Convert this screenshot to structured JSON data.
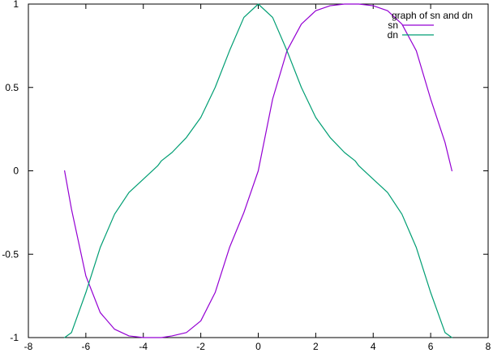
{
  "chart_data": {
    "type": "line",
    "title": "",
    "xlabel": "",
    "ylabel": "",
    "xlim": [
      -8,
      8
    ],
    "ylim": [
      -1,
      1
    ],
    "x_ticks": [
      -8,
      -6,
      -4,
      -2,
      0,
      2,
      4,
      6,
      8
    ],
    "y_ticks": [
      -1,
      -0.5,
      0,
      0.5,
      1
    ],
    "grid": false,
    "legend": {
      "placement": "top-right",
      "title": "graph of sn and dn"
    },
    "series": [
      {
        "name": "sn",
        "color": "#9400d3",
        "x": [
          -6.74,
          -6.5,
          -6.0,
          -5.5,
          -5.0,
          -4.5,
          -4.0,
          -3.5,
          -3.37,
          -3.0,
          -2.5,
          -2.0,
          -1.5,
          -1.0,
          -0.5,
          0.0,
          0.5,
          1.0,
          1.5,
          2.0,
          2.5,
          3.0,
          3.37,
          3.5,
          4.0,
          4.5,
          5.0,
          5.5,
          6.0,
          6.5,
          6.74
        ],
        "y": [
          0.0,
          -0.23,
          -0.63,
          -0.85,
          -0.95,
          -0.99,
          -1.0,
          -1.0,
          -1.0,
          -0.99,
          -0.97,
          -0.9,
          -0.73,
          -0.46,
          -0.25,
          0.0,
          0.43,
          0.72,
          0.88,
          0.96,
          0.99,
          1.0,
          1.0,
          1.0,
          0.99,
          0.96,
          0.88,
          0.72,
          0.43,
          0.17,
          0.0
        ]
      },
      {
        "name": "dn",
        "color": "#009e73",
        "x": [
          -6.74,
          -6.5,
          -6.0,
          -5.5,
          -5.0,
          -4.5,
          -4.0,
          -3.5,
          -3.37,
          -3.0,
          -2.5,
          -2.0,
          -1.5,
          -1.0,
          -0.5,
          0.0,
          0.5,
          1.0,
          1.5,
          2.0,
          2.5,
          3.0,
          3.37,
          3.5,
          4.0,
          4.5,
          5.0,
          5.5,
          6.0,
          6.5,
          6.74
        ],
        "y": [
          -1.0,
          -0.97,
          -0.73,
          -0.46,
          -0.26,
          -0.13,
          -0.05,
          0.03,
          0.06,
          0.11,
          0.2,
          0.32,
          0.5,
          0.72,
          0.92,
          1.0,
          0.92,
          0.72,
          0.5,
          0.32,
          0.2,
          0.11,
          0.06,
          0.03,
          -0.05,
          -0.13,
          -0.26,
          -0.46,
          -0.73,
          -0.97,
          -1.0
        ]
      }
    ]
  }
}
